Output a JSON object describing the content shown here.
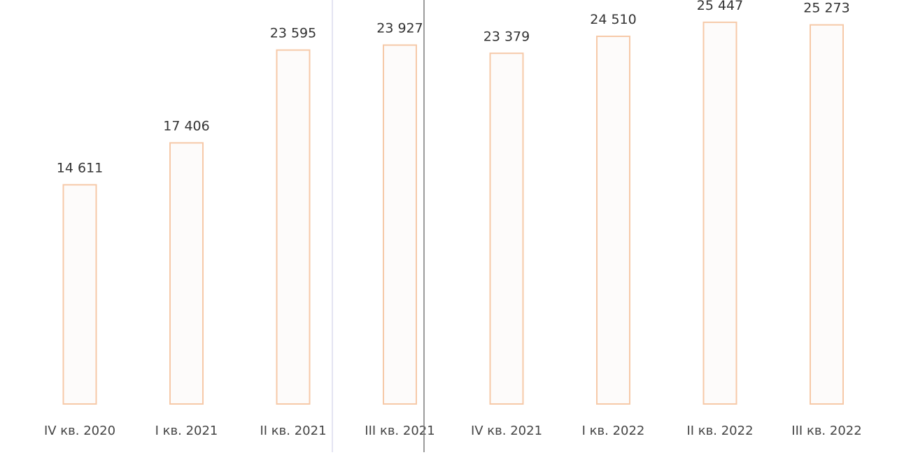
{
  "chart_data": {
    "type": "bar",
    "categories": [
      "IV кв. 2020",
      "I кв. 2021",
      "II кв. 2021",
      "III кв. 2021",
      "IV кв. 2021",
      "I кв. 2022",
      "II кв. 2022",
      "III кв. 2022"
    ],
    "values": [
      14611,
      17406,
      23595,
      23927,
      23379,
      24510,
      25447,
      25273
    ],
    "data_labels": [
      "14 611",
      "17 406",
      "23 595",
      "23 927",
      "23 379",
      "24 510",
      "25 447",
      "25 273"
    ],
    "title": "",
    "xlabel": "",
    "ylabel": "",
    "ylim": [
      0,
      26000
    ],
    "grid": false,
    "legend": "none",
    "colors": {
      "bar_fill": "#fdfbfa",
      "bar_stroke": "#f6c9a8",
      "label_text": "#333333",
      "axis_text": "#444444",
      "scan_line_light": "#c8c8e4",
      "scan_line_dark": "#7a7a7a"
    }
  }
}
